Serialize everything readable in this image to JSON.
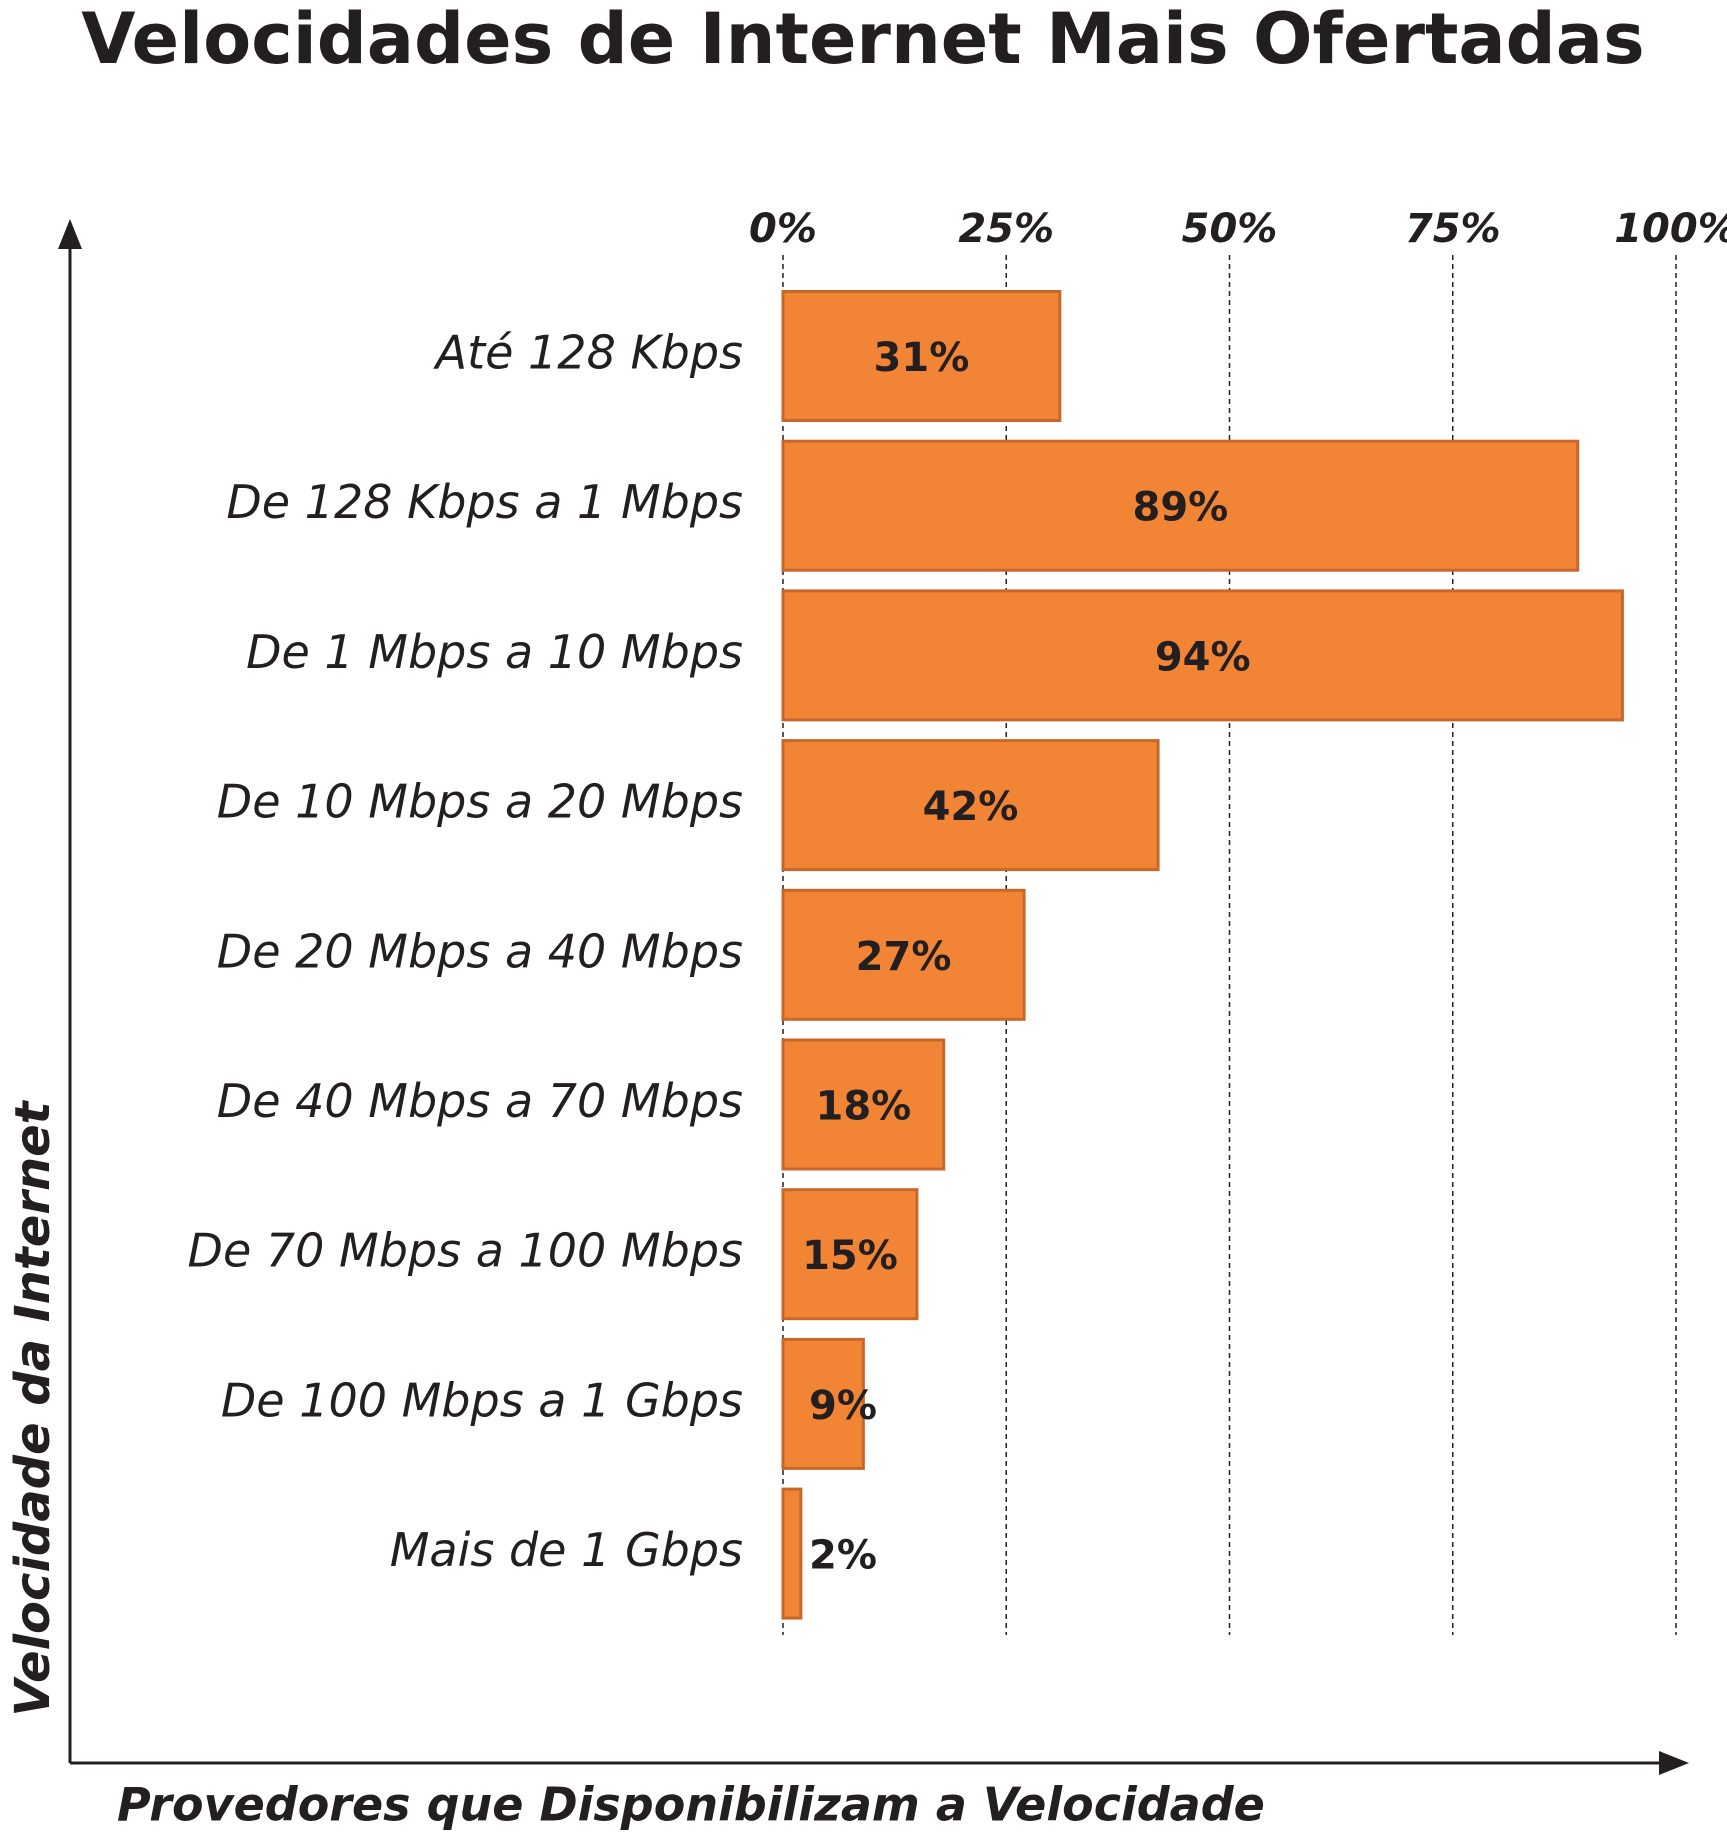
{
  "chart_data": {
    "type": "bar",
    "orientation": "horizontal",
    "title": "Velocidades de Internet Mais Ofertadas",
    "x_label": "Provedores que Disponibilizam a Velocidade",
    "y_label": "Velocidade da Internet",
    "categories": [
      "Até 128 Kbps",
      "De 128 Kbps a 1 Mbps",
      "De 1 Mbps a 10 Mbps",
      "De 10 Mbps a 20 Mbps",
      "De 20 Mbps a 40 Mbps",
      "De 40 Mbps a 70 Mbps",
      "De 70 Mbps a 100 Mbps",
      "De 100 Mbps a 1 Gbps",
      "Mais de 1 Gbps"
    ],
    "values": [
      31,
      89,
      94,
      42,
      27,
      18,
      15,
      9,
      2
    ],
    "value_labels": [
      "31%",
      "89%",
      "94%",
      "42%",
      "27%",
      "18%",
      "15%",
      "9%",
      "2%"
    ],
    "color": "#f28535",
    "xlim": [
      0,
      100
    ],
    "xticks": [
      {
        "value": 0,
        "label": "0%"
      },
      {
        "value": 25,
        "label": "25%"
      },
      {
        "value": 50,
        "label": "50%"
      },
      {
        "value": 75,
        "label": "75%"
      },
      {
        "value": 100,
        "label": "100%"
      }
    ],
    "grid": true
  }
}
